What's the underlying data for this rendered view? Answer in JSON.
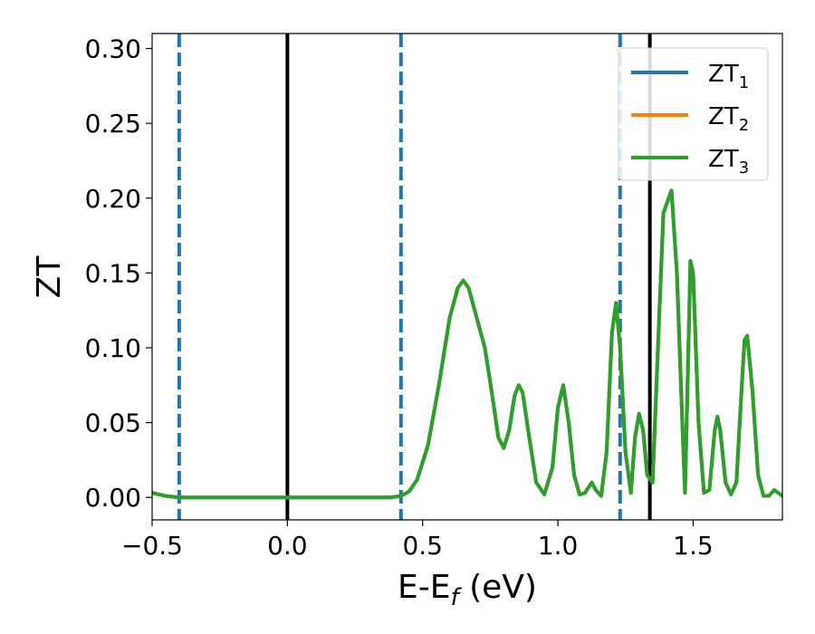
{
  "chart_data": {
    "type": "line",
    "xlabel": {
      "main": "E-E",
      "sub": "f",
      "unit": " (eV)"
    },
    "ylabel": "ZT",
    "xlim": [
      -0.5,
      1.83
    ],
    "ylim": [
      -0.015,
      0.31
    ],
    "x_ticks": [
      -0.5,
      0.0,
      0.5,
      1.0,
      1.5
    ],
    "x_tick_labels": [
      "−0.5",
      "0.0",
      "0.5",
      "1.0",
      "1.5"
    ],
    "y_ticks": [
      0.0,
      0.05,
      0.1,
      0.15,
      0.2,
      0.25,
      0.3
    ],
    "y_tick_labels": [
      "0.00",
      "0.05",
      "0.10",
      "0.15",
      "0.20",
      "0.25",
      "0.30"
    ],
    "grid": false,
    "legend_position": "top-right",
    "series": [
      {
        "name": "ZT",
        "sub": "1",
        "color": "#1f77b4",
        "data_ref": "curve"
      },
      {
        "name": "ZT",
        "sub": "2",
        "color": "#ff7f0e",
        "data_ref": "curve"
      },
      {
        "name": "ZT",
        "sub": "3",
        "color": "#2ca02c",
        "data_ref": "curve"
      }
    ],
    "curve": {
      "x": [
        -0.5,
        -0.45,
        -0.4,
        -0.3,
        -0.2,
        -0.1,
        0.0,
        0.1,
        0.2,
        0.3,
        0.38,
        0.42,
        0.45,
        0.48,
        0.52,
        0.56,
        0.6,
        0.63,
        0.65,
        0.67,
        0.7,
        0.73,
        0.76,
        0.78,
        0.8,
        0.82,
        0.84,
        0.855,
        0.87,
        0.89,
        0.92,
        0.95,
        0.98,
        1.0,
        1.02,
        1.04,
        1.06,
        1.08,
        1.1,
        1.125,
        1.14,
        1.16,
        1.18,
        1.2,
        1.215,
        1.23,
        1.25,
        1.27,
        1.285,
        1.3,
        1.315,
        1.33,
        1.35,
        1.37,
        1.39,
        1.42,
        1.44,
        1.46,
        1.47,
        1.48,
        1.49,
        1.5,
        1.52,
        1.54,
        1.56,
        1.58,
        1.59,
        1.6,
        1.62,
        1.64,
        1.66,
        1.68,
        1.69,
        1.7,
        1.72,
        1.74,
        1.76,
        1.78,
        1.8,
        1.83
      ],
      "y": [
        0.003,
        0.001,
        0.0,
        0.0,
        0.0,
        0.0,
        0.0,
        0.0,
        0.0,
        0.0,
        0.0,
        0.001,
        0.004,
        0.012,
        0.035,
        0.075,
        0.12,
        0.14,
        0.145,
        0.14,
        0.12,
        0.1,
        0.065,
        0.04,
        0.033,
        0.045,
        0.068,
        0.075,
        0.07,
        0.045,
        0.01,
        0.002,
        0.02,
        0.06,
        0.075,
        0.05,
        0.015,
        0.002,
        0.003,
        0.01,
        0.005,
        0.001,
        0.03,
        0.11,
        0.13,
        0.1,
        0.03,
        0.003,
        0.04,
        0.056,
        0.045,
        0.015,
        0.01,
        0.1,
        0.19,
        0.205,
        0.15,
        0.05,
        0.003,
        0.08,
        0.158,
        0.15,
        0.05,
        0.003,
        0.005,
        0.045,
        0.054,
        0.045,
        0.01,
        0.002,
        0.01,
        0.075,
        0.105,
        0.108,
        0.07,
        0.015,
        0.001,
        0.001,
        0.005,
        0.001
      ]
    },
    "vertical_lines": [
      {
        "x": -0.4,
        "style": "dashed",
        "color": "#1f77b4"
      },
      {
        "x": 0.0,
        "style": "solid",
        "color": "#000000"
      },
      {
        "x": 0.42,
        "style": "dashed",
        "color": "#1f77b4"
      },
      {
        "x": 1.23,
        "style": "dashed",
        "color": "#1f77b4"
      },
      {
        "x": 1.34,
        "style": "solid",
        "color": "#000000"
      }
    ]
  }
}
